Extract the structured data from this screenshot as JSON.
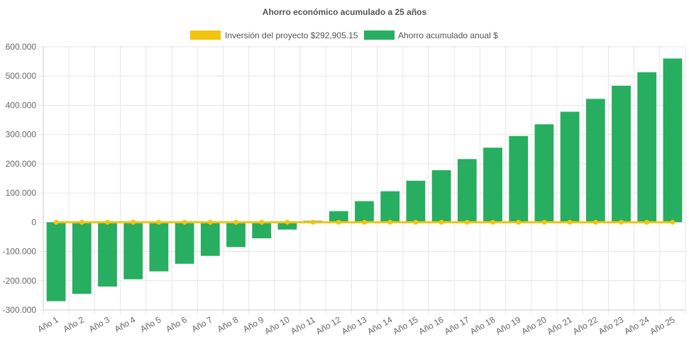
{
  "chart_data": {
    "type": "bar",
    "title": "Ahorro económico acumulado a 25 años",
    "categories": [
      "Año 1",
      "Año 2",
      "Año 3",
      "Año 4",
      "Año 5",
      "Año 6",
      "Año 7",
      "Año 8",
      "Año 9",
      "Año 10",
      "Año 11",
      "Año 12",
      "Año 13",
      "Año 14",
      "Año 15",
      "Año 16",
      "Año 17",
      "Año 18",
      "Año 19",
      "Año 20",
      "Año 21",
      "Año 22",
      "Año 23",
      "Año 24",
      "Año 25"
    ],
    "series": [
      {
        "name": "Inversión del proyecto $292,905.15",
        "type": "line",
        "color": "#f1c40f",
        "values": [
          0,
          0,
          0,
          0,
          0,
          0,
          0,
          0,
          0,
          0,
          0,
          0,
          0,
          0,
          0,
          0,
          0,
          0,
          0,
          0,
          0,
          0,
          0,
          0,
          0
        ]
      },
      {
        "name": "Ahorro acumulado anual $",
        "type": "bar",
        "color": "#27ae60",
        "values": [
          -270000,
          -245000,
          -220000,
          -195000,
          -168000,
          -142000,
          -115000,
          -85000,
          -55000,
          -25000,
          5000,
          38000,
          72000,
          106000,
          142000,
          178000,
          216000,
          255000,
          295000,
          335000,
          378000,
          422000,
          467000,
          513000,
          560000
        ]
      }
    ],
    "ylim": [
      -300000,
      600000
    ],
    "yticks": [
      600000,
      500000,
      400000,
      300000,
      200000,
      100000,
      0,
      -100000,
      -200000,
      -300000
    ],
    "ytick_labels": [
      "600.000",
      "500.000",
      "400.000",
      "300.000",
      "200.000",
      "100.000",
      "0",
      "-100.000",
      "-200.000",
      "-300.000"
    ],
    "grid": true,
    "legend_position": "top-center"
  }
}
